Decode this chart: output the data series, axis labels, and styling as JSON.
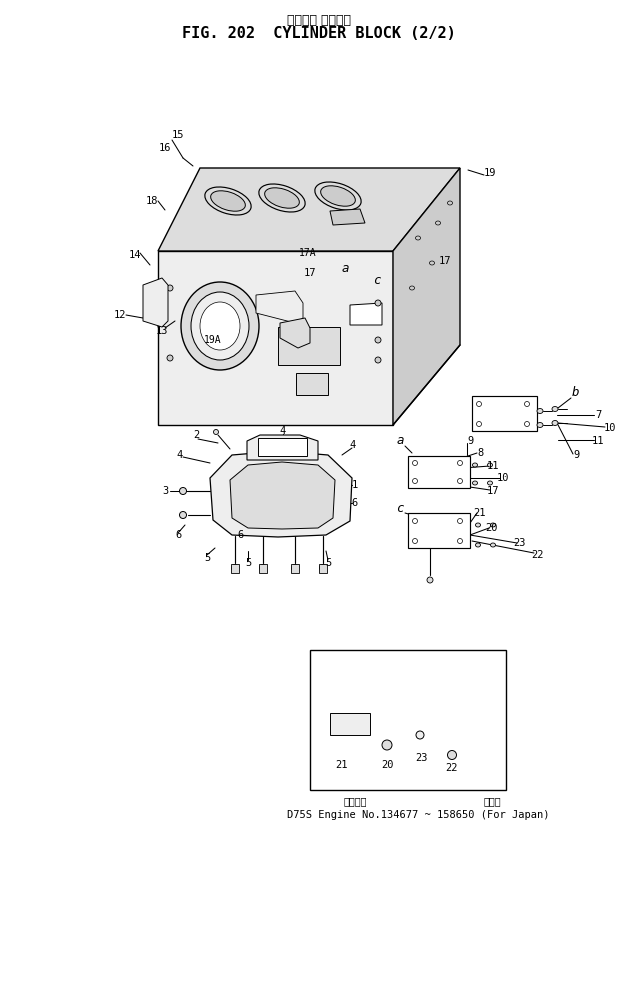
{
  "title_jp": "シリンダ ブロック",
  "title_en": "FIG. 202  CYLINDER BLOCK (2/2)",
  "caption_l": "通用号码",
  "caption_r": "国内用",
  "caption_b": "D75S Engine No.134677 ~ 158650 (For Japan)",
  "bg": "#ffffff",
  "black": "#000000",
  "gray1": "#eeeeee",
  "gray2": "#dddddd",
  "gray3": "#cccccc"
}
